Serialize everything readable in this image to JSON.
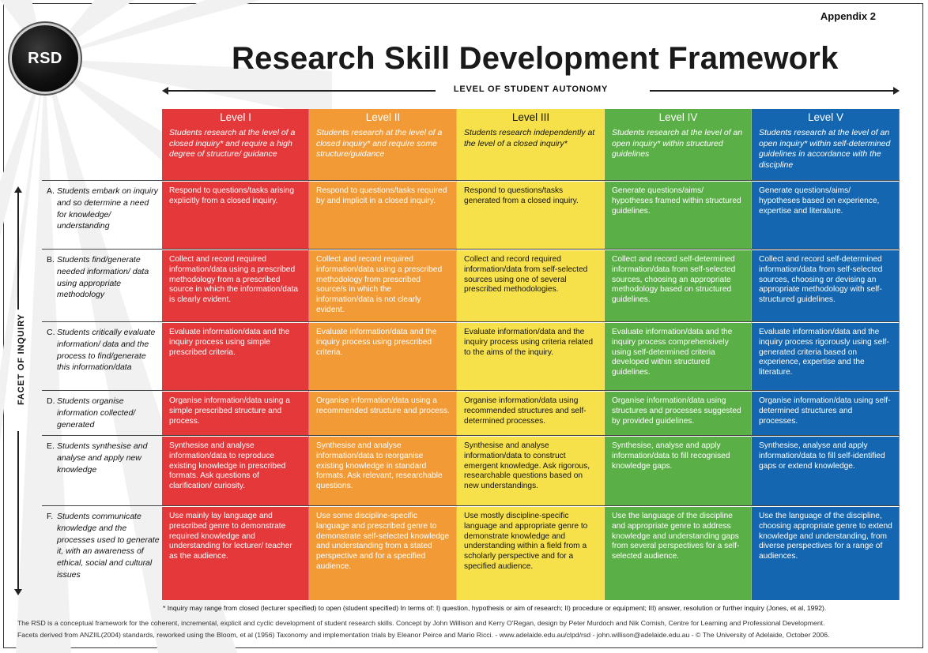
{
  "appendix": "Appendix 2",
  "logo": "RSD",
  "title": "Research Skill Development Framework",
  "autonomy_label": "LEVEL OF STUDENT AUTONOMY",
  "facet_axis_label": "FACET OF INQUIRY",
  "colors": {
    "level1": "#e5383b",
    "level2": "#f29a35",
    "level3": "#f7e14a",
    "level4": "#5ab046",
    "level5": "#1466b0"
  },
  "levels": [
    {
      "name": "Level I",
      "description": "Students research at the level of a closed inquiry* and require a high degree of structure/ guidance"
    },
    {
      "name": "Level II",
      "description": "Students research at the level of a closed inquiry* and require some structure/guidance"
    },
    {
      "name": "Level III",
      "description": "Students research independently at the level of a closed inquiry*"
    },
    {
      "name": "Level IV",
      "description": "Students research at the level of an open inquiry* within structured guidelines"
    },
    {
      "name": "Level V",
      "description": "Students research at the level of an open inquiry* within self-determined guidelines in accordance with the discipline"
    }
  ],
  "facets": [
    {
      "letter": "A.",
      "text": "Students embark on inquiry and so determine a need for knowledge/ understanding",
      "cells": [
        "Respond to questions/tasks arising explicitly from a closed inquiry.",
        "Respond to questions/tasks required by and implicit in a closed inquiry.",
        "Respond to questions/tasks generated from a closed inquiry.",
        "Generate questions/aims/ hypotheses framed within structured guidelines.",
        "Generate questions/aims/ hypotheses based on experience, expertise and literature."
      ]
    },
    {
      "letter": "B.",
      "text": "Students find/generate needed information/ data using appropriate methodology",
      "cells": [
        "Collect and record required information/data using a prescribed methodology from a prescribed source in which the information/data is clearly evident.",
        "Collect and record required information/data using a prescribed methodology from prescribed source/s in which the information/data is not clearly evident.",
        "Collect and record required information/data from self-selected sources using one of several prescribed methodologies.",
        "Collect and record self-determined information/data from self-selected sources, choosing an appropriate methodology based on structured guidelines.",
        "Collect and record self-determined information/data from self-selected sources, choosing or devising an appropriate methodology with self-structured guidelines."
      ]
    },
    {
      "letter": "C.",
      "text": "Students critically evaluate information/ data and the process to find/generate this information/data",
      "cells": [
        "Evaluate information/data and the inquiry process using simple prescribed criteria.",
        "Evaluate information/data and the inquiry process using prescribed criteria.",
        "Evaluate information/data and the inquiry process using criteria related to the aims of the inquiry.",
        "Evaluate information/data and the inquiry process comprehensively using self-determined criteria developed within structured guidelines.",
        "Evaluate information/data and the inquiry process rigorously using self-generated criteria based on experience, expertise and the literature."
      ]
    },
    {
      "letter": "D.",
      "text": "Students organise information collected/ generated",
      "cells": [
        "Organise information/data using a simple prescribed structure and process.",
        "Organise information/data using a recommended structure and process.",
        "Organise information/data using recommended structures and self-determined processes.",
        "Organise information/data using structures and processes suggested by provided guidelines.",
        "Organise information/data using self-determined structures and processes."
      ]
    },
    {
      "letter": "E.",
      "text": "Students synthesise and analyse and apply new knowledge",
      "cells": [
        "Synthesise and analyse information/data to reproduce existing knowledge in prescribed formats. Ask questions of clarification/ curiosity.",
        "Synthesise and analyse information/data to reorganise existing knowledge in standard formats. Ask relevant, researchable questions.",
        "Synthesise and analyse information/data to construct emergent knowledge. Ask rigorous, researchable questions based on new understandings.",
        "Synthesise, analyse and apply information/data to fill recognised knowledge gaps.",
        "Synthesise, analyse and apply information/data to fill self-identified gaps or extend knowledge."
      ]
    },
    {
      "letter": "F.",
      "text": "Students communicate knowledge and the processes used to generate it, with an awareness of ethical, social and cultural issues",
      "cells": [
        "Use mainly lay language and prescribed genre to demonstrate required knowledge and understanding for lecturer/ teacher as the audience.",
        "Use some discipline-specific language and prescribed genre to demonstrate self-selected knowledge and understanding from a stated perspective and for a specified audience.",
        "Use mostly discipline-specific language and appropriate genre to demonstrate knowledge and understanding within a field from a scholarly perspective and for a specified audience.",
        "Use the language of the discipline and appropriate genre to address knowledge and understanding gaps from several perspectives for a self-selected audience.",
        "Use the language of the discipline, choosing appropriate genre to extend knowledge and understanding, from diverse perspectives for a range of audiences."
      ]
    }
  ],
  "footnote": "* Inquiry may range from closed (lecturer specified) to open (student specified) In terms of: I) question, hypothesis or aim of research; II) procedure or equipment; III) answer, resolution or further inquiry (Jones, et al, 1992).",
  "credits_line1": "The RSD is a conceptual framework for the coherent, incremental, explicit and cyclic development of student research skills. Concept by John Willison and Kerry O'Regan, design by Peter Murdoch and Nik Cornish, Centre for Learning and Professional Development.",
  "credits_line2": "Facets derived from ANZIIL(2004) standards, reworked using the Bloom, et al (1956) Taxonomy and implementation trials by Eleanor Peirce and Mario Ricci. - www.adelaide.edu.au/clpd/rsd - john.willison@adelaide.edu.au - © The University of Adelaide, October 2006."
}
